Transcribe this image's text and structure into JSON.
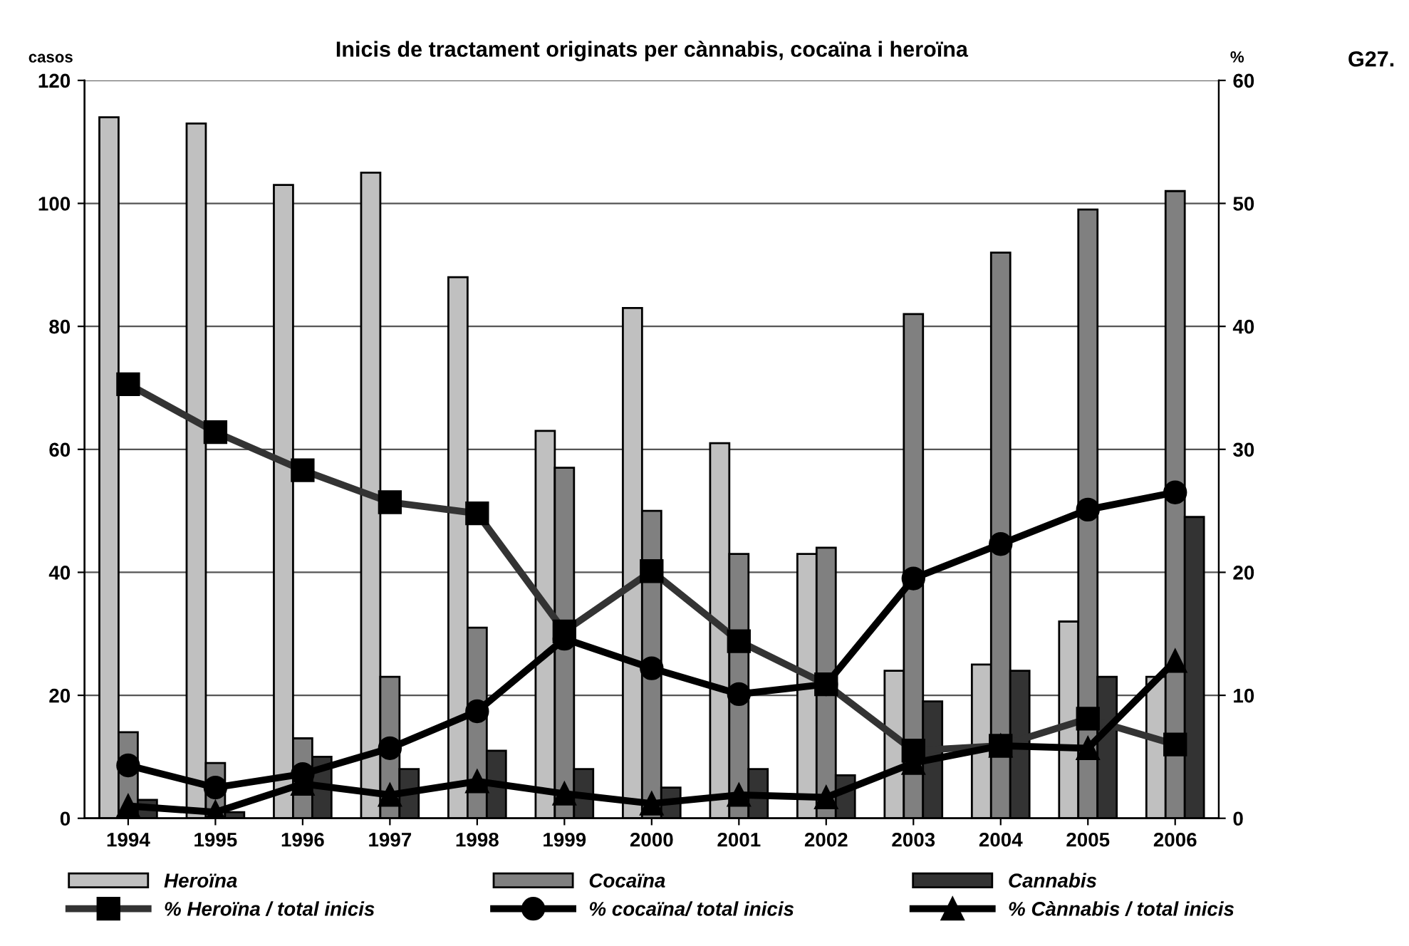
{
  "chart_data": {
    "type": "bar",
    "title": "Inicis de tractament originats per cànnabis, cocaïna i heroïna",
    "ylabel": "casos",
    "y2label": "%",
    "annotations": [
      "G27."
    ],
    "categories": [
      "1994",
      "1995",
      "1996",
      "1997",
      "1998",
      "1999",
      "2000",
      "2001",
      "2002",
      "2003",
      "2004",
      "2005",
      "2006"
    ],
    "series": [
      {
        "name": "Heroïna",
        "color": "#c0c0c0",
        "values": [
          114,
          113,
          103,
          105,
          88,
          63,
          83,
          61,
          43,
          24,
          25,
          32,
          23
        ]
      },
      {
        "name": "Cocaïna",
        "color": "#808080",
        "values": [
          14,
          9,
          13,
          23,
          31,
          57,
          50,
          43,
          44,
          82,
          92,
          99,
          102
        ]
      },
      {
        "name": "Cannabis",
        "color": "#333333",
        "values": [
          3,
          1,
          10,
          8,
          11,
          8,
          5,
          8,
          7,
          19,
          24,
          23,
          49
        ]
      },
      {
        "name": "% Heroïna / total inicis",
        "type": "line",
        "axis": "y2",
        "marker": "square",
        "color": "#333333",
        "values": [
          35.3,
          31.4,
          28.3,
          25.7,
          24.8,
          15.2,
          20.1,
          14.4,
          10.9,
          5.5,
          5.9,
          8.1,
          6.0
        ]
      },
      {
        "name": "% cocaïna/ total inicis",
        "type": "line",
        "axis": "y2",
        "marker": "circle",
        "color": "#000000",
        "values": [
          4.3,
          2.5,
          3.6,
          5.7,
          8.7,
          14.6,
          12.2,
          10.1,
          10.9,
          19.5,
          22.3,
          25.1,
          26.5
        ]
      },
      {
        "name": "% Cànnabis / total inicis",
        "type": "line",
        "axis": "y2",
        "marker": "triangle",
        "color": "#000000",
        "values": [
          1.0,
          0.5,
          2.8,
          1.9,
          3.0,
          2.0,
          1.2,
          1.9,
          1.7,
          4.5,
          5.9,
          5.7,
          12.8
        ]
      }
    ],
    "ylim": [
      0,
      120
    ],
    "yticks": [
      0,
      20,
      40,
      60,
      80,
      100,
      120
    ],
    "y2lim": [
      0,
      60
    ],
    "y2ticks": [
      0,
      10,
      20,
      30,
      40,
      50,
      60
    ],
    "grid": "y",
    "legend": "bottom"
  }
}
